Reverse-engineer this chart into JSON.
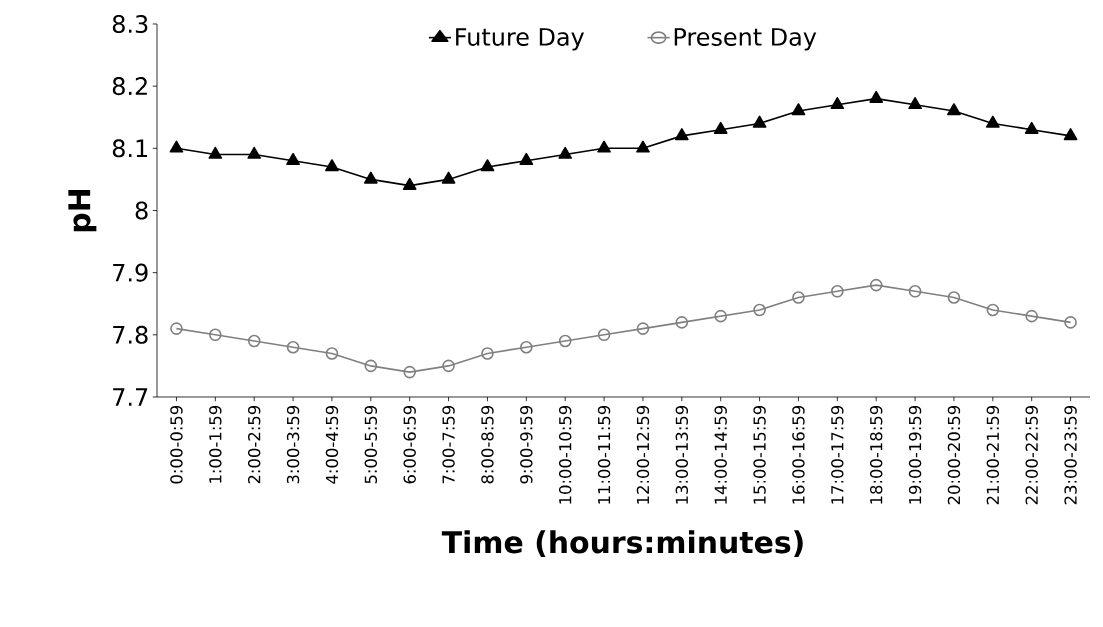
{
  "chart_data": {
    "type": "line",
    "xlabel": "Time (hours:minutes)",
    "ylabel": "pH",
    "categories": [
      "0:00-0:59",
      "1:00-1:59",
      "2:00-2:59",
      "3:00-3:59",
      "4:00-4:59",
      "5:00-5:59",
      "6:00-6:59",
      "7:00-7:59",
      "8:00-8:59",
      "9:00-9:59",
      "10:00-10:59",
      "11:00-11:59",
      "12:00-12:59",
      "13:00-13:59",
      "14:00-14:59",
      "15:00-15:59",
      "16:00-16:59",
      "17:00-17:59",
      "18:00-18:59",
      "19:00-19:59",
      "20:00-20:59",
      "21:00-21:59",
      "22:00-22:59",
      "23:00-23:59"
    ],
    "series": [
      {
        "name": "Future Day",
        "color": "#000000",
        "marker": "triangle",
        "values": [
          8.1,
          8.09,
          8.09,
          8.08,
          8.07,
          8.05,
          8.04,
          8.05,
          8.07,
          8.08,
          8.09,
          8.1,
          8.1,
          8.12,
          8.13,
          8.14,
          8.16,
          8.17,
          8.18,
          8.17,
          8.16,
          8.14,
          8.13,
          8.12
        ]
      },
      {
        "name": "Present Day",
        "color": "#808080",
        "marker": "circle",
        "values": [
          7.81,
          7.8,
          7.79,
          7.78,
          7.77,
          7.75,
          7.74,
          7.75,
          7.77,
          7.78,
          7.79,
          7.8,
          7.81,
          7.82,
          7.83,
          7.84,
          7.86,
          7.87,
          7.88,
          7.87,
          7.86,
          7.84,
          7.83,
          7.82
        ]
      }
    ],
    "ylim": [
      7.7,
      8.3
    ],
    "yticks": [
      7.7,
      7.8,
      7.9,
      8,
      8.1,
      8.2,
      8.3
    ],
    "grid": false,
    "legend": "top",
    "line_style": "solid"
  }
}
